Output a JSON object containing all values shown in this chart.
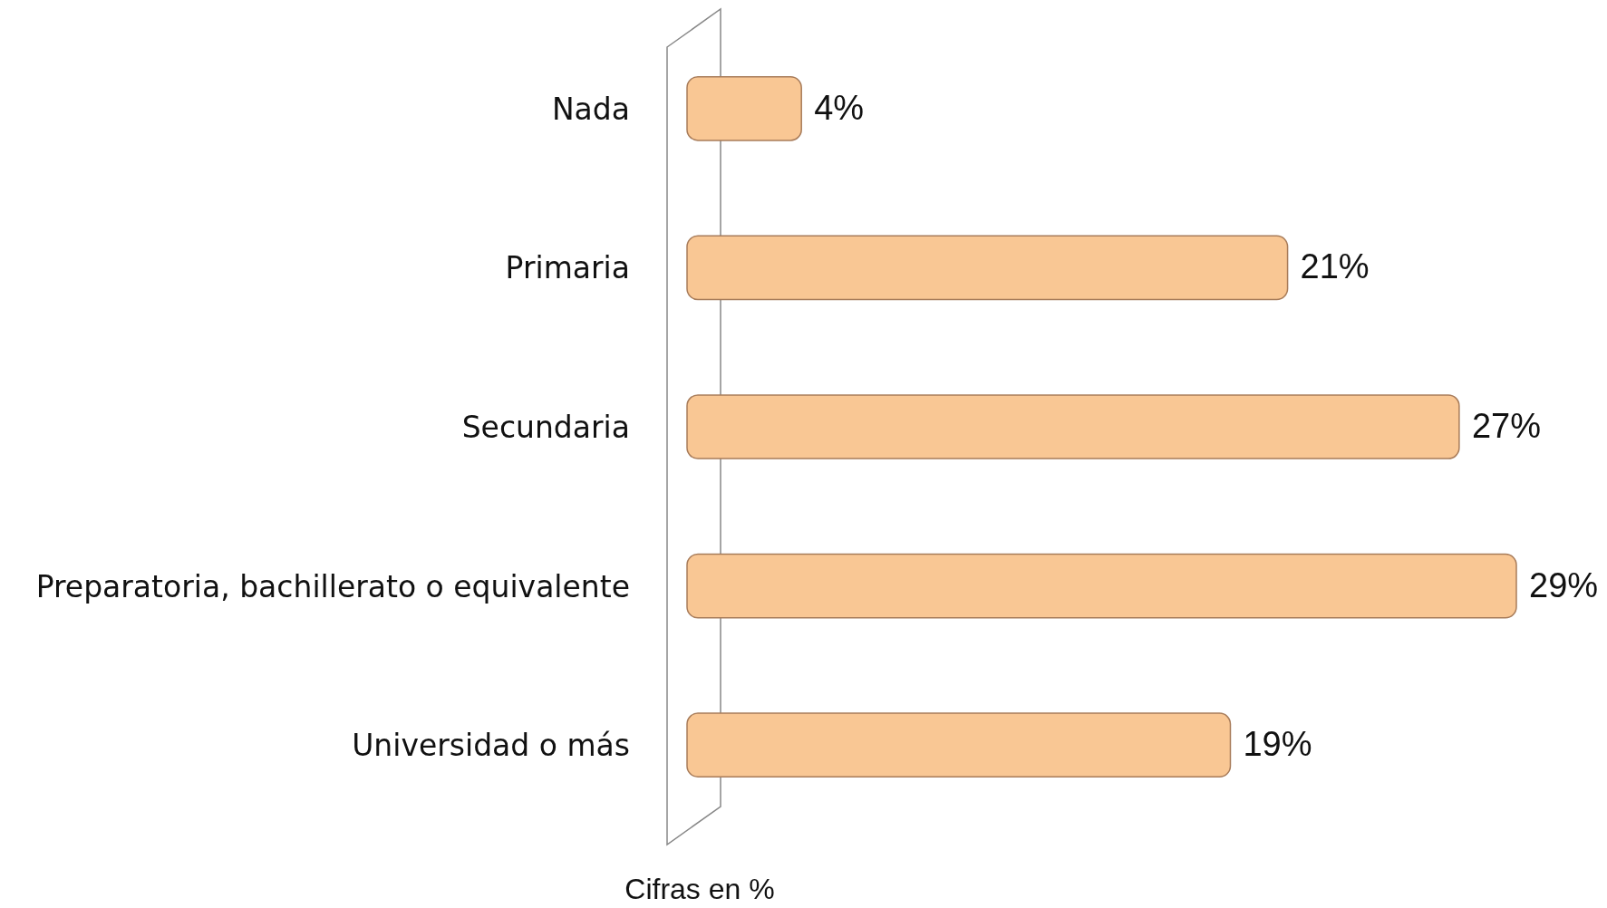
{
  "chart_data": {
    "type": "bar",
    "orientation": "horizontal",
    "categories": [
      "Nada",
      "Primaria",
      "Secundaria",
      "Preparatoria, bachillerato o equivalente",
      "Universidad o más"
    ],
    "values": [
      4,
      21,
      27,
      29,
      19
    ],
    "value_labels": [
      "4%",
      "21%",
      "27%",
      "29%",
      "19%"
    ],
    "color": "#f9c794",
    "annotations": [
      "Cifras en %"
    ]
  }
}
